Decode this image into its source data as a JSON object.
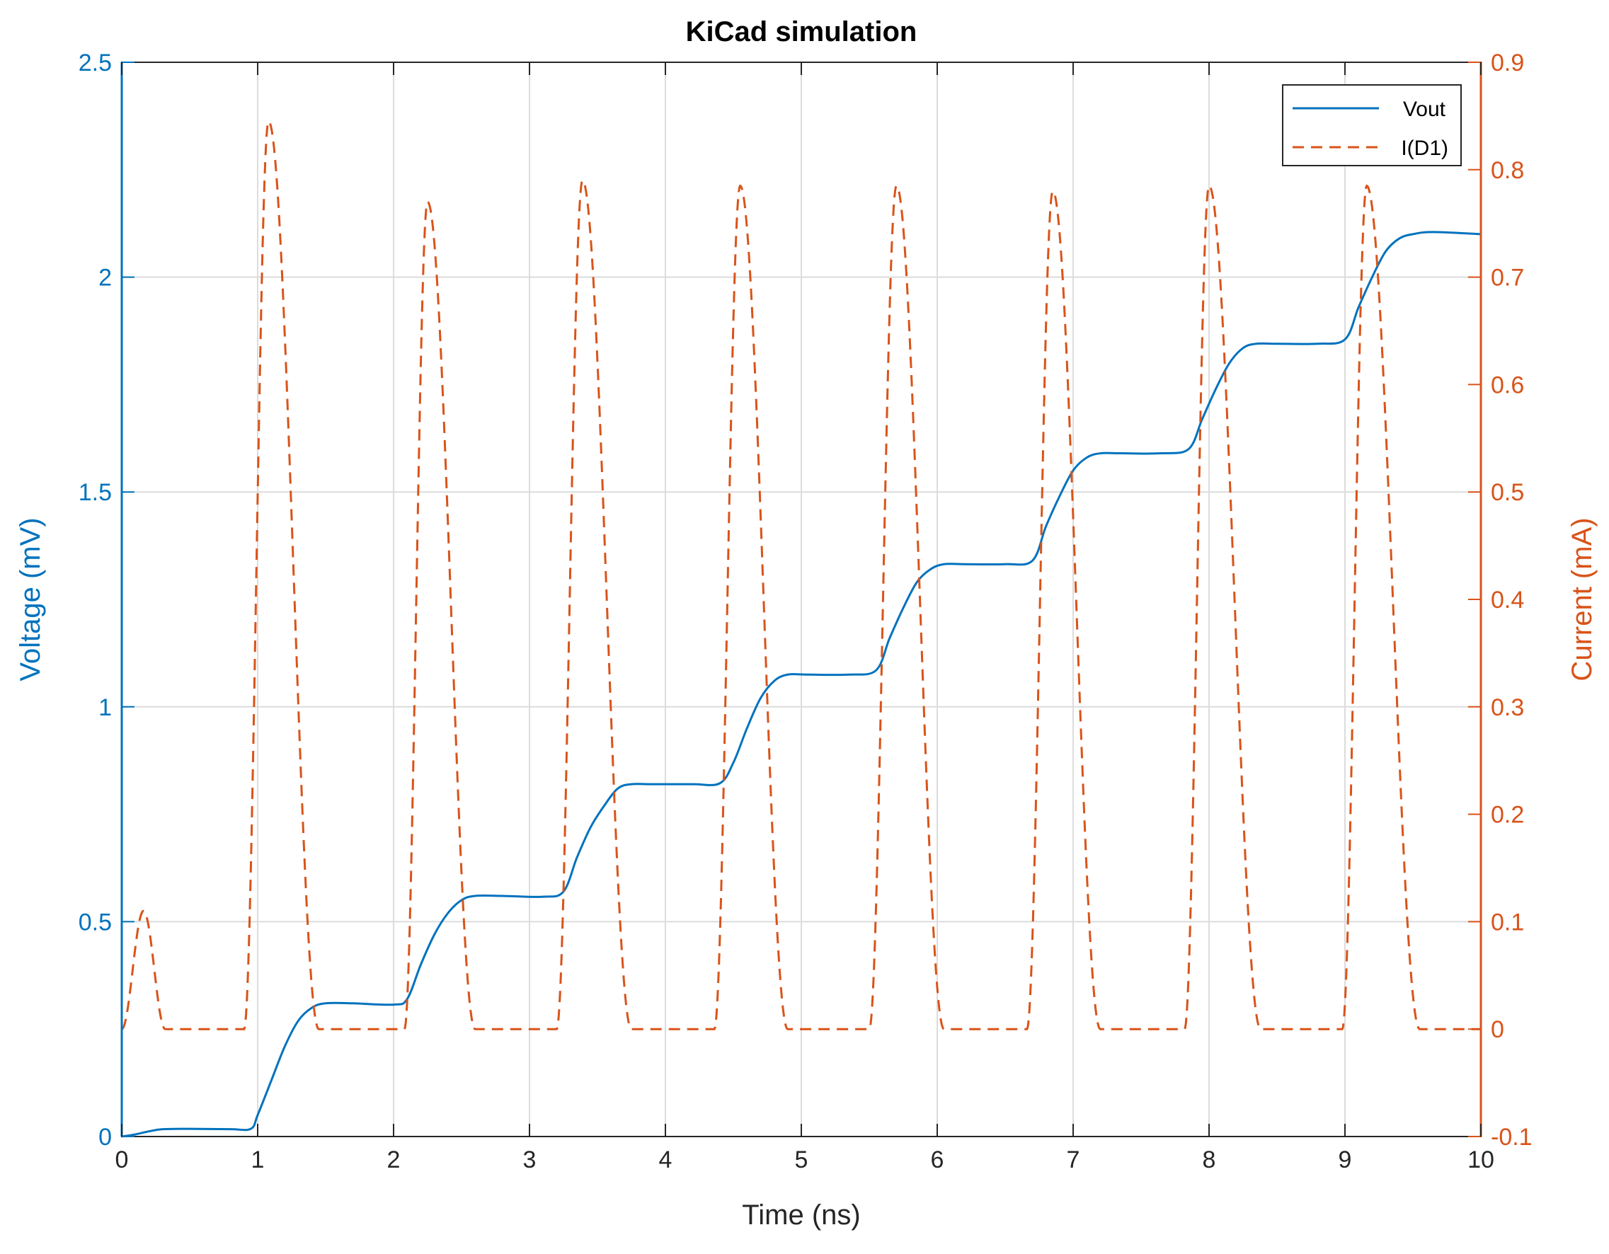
{
  "chart_data": {
    "type": "line",
    "title": "KiCad simulation",
    "xlabel": "Time (ns)",
    "ylabel_left": "Voltage (mV)",
    "ylabel_right": "Current (mA)",
    "xlim": [
      0,
      10
    ],
    "ylim_left": [
      0,
      2.5
    ],
    "ylim_right": [
      -0.1,
      0.9
    ],
    "x_ticks": [
      "0",
      "1",
      "2",
      "3",
      "4",
      "5",
      "6",
      "7",
      "8",
      "9",
      "10"
    ],
    "y_left_ticks": [
      "0",
      "0.5",
      "1",
      "1.5",
      "2",
      "2.5"
    ],
    "y_right_ticks": [
      "-0.1",
      "0",
      "0.1",
      "0.2",
      "0.3",
      "0.4",
      "0.5",
      "0.6",
      "0.7",
      "0.8",
      "0.9"
    ],
    "grid": true,
    "legend_position": "top-right",
    "colors": {
      "left_axis": "#0072BD",
      "right_axis": "#D95319",
      "grid": "#dcdcdc",
      "axis_box": "#262626"
    },
    "series": [
      {
        "name": "Vout",
        "axis": "left",
        "style": "solid",
        "x": [
          0,
          0.1,
          0.2,
          0.3,
          0.5,
          0.8,
          0.95,
          1.0,
          1.1,
          1.2,
          1.3,
          1.4,
          1.5,
          1.7,
          2.0,
          2.1,
          2.2,
          2.3,
          2.4,
          2.5,
          2.6,
          2.8,
          3.1,
          3.25,
          3.35,
          3.45,
          3.55,
          3.65,
          3.75,
          3.9,
          4.2,
          4.4,
          4.5,
          4.6,
          4.7,
          4.8,
          4.9,
          5.05,
          5.35,
          5.55,
          5.65,
          5.75,
          5.85,
          5.95,
          6.05,
          6.2,
          6.5,
          6.7,
          6.8,
          6.9,
          7.0,
          7.1,
          7.2,
          7.35,
          7.65,
          7.85,
          7.95,
          8.05,
          8.15,
          8.25,
          8.35,
          8.5,
          8.8,
          9.0,
          9.1,
          9.2,
          9.3,
          9.4,
          9.5,
          9.65,
          10.0
        ],
        "y": [
          0,
          0.005,
          0.012,
          0.017,
          0.018,
          0.017,
          0.018,
          0.05,
          0.13,
          0.21,
          0.27,
          0.3,
          0.31,
          0.31,
          0.307,
          0.32,
          0.4,
          0.47,
          0.52,
          0.55,
          0.56,
          0.56,
          0.558,
          0.57,
          0.65,
          0.72,
          0.77,
          0.81,
          0.82,
          0.82,
          0.82,
          0.822,
          0.87,
          0.95,
          1.02,
          1.06,
          1.075,
          1.075,
          1.075,
          1.085,
          1.16,
          1.23,
          1.29,
          1.32,
          1.332,
          1.332,
          1.332,
          1.34,
          1.42,
          1.49,
          1.55,
          1.58,
          1.59,
          1.59,
          1.59,
          1.6,
          1.67,
          1.74,
          1.8,
          1.835,
          1.845,
          1.845,
          1.845,
          1.855,
          1.93,
          2.0,
          2.06,
          2.09,
          2.1,
          2.105,
          2.1
        ]
      },
      {
        "name": "I(D1)",
        "axis": "right",
        "style": "dashed",
        "peaks": [
          {
            "start": 0.0,
            "peak": 0.16,
            "end": 0.32,
            "value": 0.11
          },
          {
            "start": 0.9,
            "peak": 1.08,
            "end": 1.45,
            "value": 0.845
          },
          {
            "start": 2.08,
            "peak": 2.25,
            "end": 2.6,
            "value": 0.77
          },
          {
            "start": 3.2,
            "peak": 3.39,
            "end": 3.75,
            "value": 0.79
          },
          {
            "start": 4.36,
            "peak": 4.55,
            "end": 4.9,
            "value": 0.785
          },
          {
            "start": 5.5,
            "peak": 5.7,
            "end": 6.05,
            "value": 0.785
          },
          {
            "start": 6.66,
            "peak": 6.85,
            "end": 7.2,
            "value": 0.78
          },
          {
            "start": 7.82,
            "peak": 8.0,
            "end": 8.38,
            "value": 0.785
          },
          {
            "start": 8.98,
            "peak": 9.16,
            "end": 9.55,
            "value": 0.785
          }
        ]
      }
    ]
  }
}
